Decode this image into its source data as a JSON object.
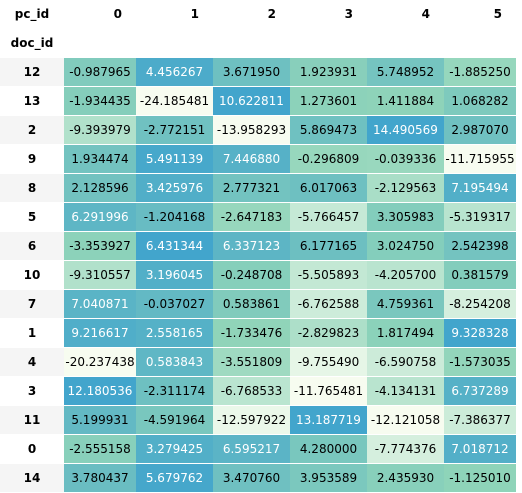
{
  "table": {
    "columns_name": "pc_id",
    "index_name": "doc_id",
    "columns": [
      "0",
      "1",
      "2",
      "3",
      "4",
      "5"
    ],
    "rows": [
      {
        "id": "12",
        "values": [
          "-0.987965",
          "4.456267",
          "3.671950",
          "1.923931",
          "5.748952",
          "-1.885250"
        ]
      },
      {
        "id": "13",
        "values": [
          "-1.934435",
          "-24.185481",
          "10.622811",
          "1.273601",
          "1.411884",
          "1.068282"
        ]
      },
      {
        "id": "2",
        "values": [
          "-9.393979",
          "-2.772151",
          "-13.958293",
          "5.869473",
          "14.490569",
          "2.987070"
        ]
      },
      {
        "id": "9",
        "values": [
          "1.934474",
          "5.491139",
          "7.446880",
          "-0.296809",
          "-0.039336",
          "-11.715955"
        ]
      },
      {
        "id": "8",
        "values": [
          "2.128596",
          "3.425976",
          "2.777321",
          "6.017063",
          "-2.129563",
          "7.195494"
        ]
      },
      {
        "id": "5",
        "values": [
          "6.291996",
          "-1.204168",
          "-2.647183",
          "-5.766457",
          "3.305983",
          "-5.319317"
        ]
      },
      {
        "id": "6",
        "values": [
          "-3.353927",
          "6.431344",
          "6.337123",
          "6.177165",
          "3.024750",
          "2.542398"
        ]
      },
      {
        "id": "10",
        "values": [
          "-9.310557",
          "3.196045",
          "-0.248708",
          "-5.505893",
          "-4.205700",
          "0.381579"
        ]
      },
      {
        "id": "7",
        "values": [
          "7.040871",
          "-0.037027",
          "0.583861",
          "-6.762588",
          "4.759361",
          "-8.254208"
        ]
      },
      {
        "id": "1",
        "values": [
          "9.216617",
          "2.558165",
          "-1.733476",
          "-2.829823",
          "1.817494",
          "9.328328"
        ]
      },
      {
        "id": "4",
        "values": [
          "-20.237438",
          "0.583843",
          "-3.551809",
          "-9.755490",
          "-6.590758",
          "-1.573035"
        ]
      },
      {
        "id": "3",
        "values": [
          "12.180536",
          "-2.311174",
          "-6.768533",
          "-11.765481",
          "-4.134131",
          "6.737289"
        ]
      },
      {
        "id": "11",
        "values": [
          "5.199931",
          "-4.591964",
          "-12.597922",
          "13.187719",
          "-12.121058",
          "-7.386377"
        ]
      },
      {
        "id": "0",
        "values": [
          "-2.555158",
          "3.279425",
          "6.595217",
          "4.280000",
          "-7.774376",
          "7.018712"
        ]
      },
      {
        "id": "14",
        "values": [
          "3.780437",
          "5.679762",
          "3.470760",
          "3.953589",
          "2.435930",
          "-1.125010"
        ]
      }
    ]
  },
  "colors": {
    "scale_low": "#f7fcf0",
    "scale_mid": "#8fd4b9",
    "scale_high": "#42a5cc"
  }
}
